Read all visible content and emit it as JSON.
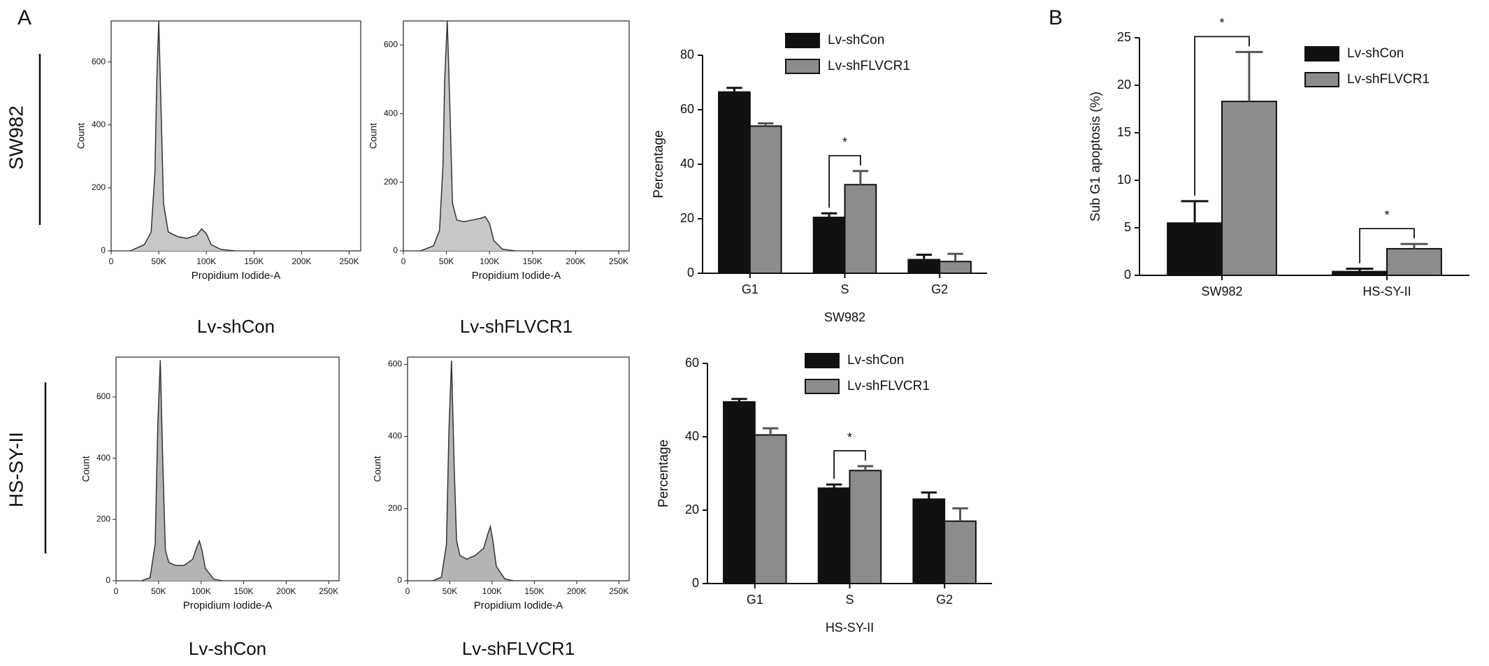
{
  "panel_labels": [
    "A",
    "B"
  ],
  "row_labels": [
    "SW982",
    "HS-SY-II"
  ],
  "chart_data": [
    {
      "type": "area",
      "caption": "Lv-shCon",
      "xlabel": "Propidium Iodide-A",
      "ylabel": "Count",
      "x": [
        20000,
        35000,
        42000,
        46000,
        48000,
        50000,
        52000,
        55000,
        60000,
        70000,
        80000,
        90000,
        95000,
        100000,
        105000,
        115000,
        130000
      ],
      "values": [
        0,
        20,
        60,
        250,
        550,
        730,
        500,
        150,
        60,
        45,
        40,
        50,
        70,
        55,
        20,
        5,
        0
      ],
      "color": "#c8c8c8",
      "xlim": [
        0,
        262144
      ],
      "xticks": [
        0,
        {
          "value": 50000,
          "label": "50K"
        },
        {
          "value": 100000,
          "label": "100K"
        },
        {
          "value": 150000,
          "label": "150K"
        },
        {
          "value": 200000,
          "label": "200K"
        },
        {
          "value": 250000,
          "label": "250K"
        }
      ],
      "ylim": [
        0,
        730
      ],
      "yticks": [
        0,
        200,
        400,
        600
      ]
    },
    {
      "type": "area",
      "caption": "Lv-shFLVCR1",
      "xlabel": "Propidium Iodide-A",
      "ylabel": "Count",
      "x": [
        20000,
        35000,
        42000,
        46000,
        48000,
        51000,
        54000,
        57000,
        62000,
        70000,
        80000,
        90000,
        95000,
        100000,
        105000,
        115000,
        130000
      ],
      "values": [
        0,
        15,
        60,
        250,
        500,
        670,
        420,
        140,
        90,
        85,
        90,
        95,
        100,
        80,
        30,
        5,
        0
      ],
      "color": "#c8c8c8",
      "xlim": [
        0,
        262144
      ],
      "xticks": [
        0,
        {
          "value": 50000,
          "label": "50K"
        },
        {
          "value": 100000,
          "label": "100K"
        },
        {
          "value": 150000,
          "label": "150K"
        },
        {
          "value": 200000,
          "label": "200K"
        },
        {
          "value": 250000,
          "label": "250K"
        }
      ],
      "ylim": [
        0,
        670
      ],
      "yticks": [
        0,
        200,
        400,
        600
      ]
    },
    {
      "type": "area",
      "caption": "Lv-shCon",
      "xlabel": "Propidium Iodide-A",
      "ylabel": "Count",
      "x": [
        30000,
        40000,
        46000,
        49000,
        52000,
        55000,
        58000,
        62000,
        70000,
        80000,
        90000,
        95000,
        98000,
        101000,
        105000,
        115000,
        125000
      ],
      "values": [
        0,
        10,
        120,
        500,
        720,
        380,
        100,
        60,
        50,
        50,
        70,
        110,
        130,
        100,
        40,
        5,
        0
      ],
      "color": "#b4b4b4",
      "xlim": [
        0,
        262144
      ],
      "xticks": [
        0,
        {
          "value": 50000,
          "label": "50K"
        },
        {
          "value": 100000,
          "label": "100K"
        },
        {
          "value": 150000,
          "label": "150K"
        },
        {
          "value": 200000,
          "label": "200K"
        },
        {
          "value": 250000,
          "label": "250K"
        }
      ],
      "ylim": [
        0,
        730
      ],
      "yticks": [
        0,
        200,
        400,
        600
      ]
    },
    {
      "type": "area",
      "caption": "Lv-shFLVCR1",
      "xlabel": "Propidium Iodide-A",
      "ylabel": "Count",
      "x": [
        30000,
        40000,
        46000,
        49000,
        52000,
        55000,
        58000,
        62000,
        70000,
        80000,
        90000,
        95000,
        98000,
        101000,
        105000,
        115000,
        125000
      ],
      "values": [
        0,
        10,
        100,
        420,
        610,
        330,
        110,
        70,
        60,
        70,
        90,
        130,
        150,
        110,
        40,
        5,
        0
      ],
      "color": "#b4b4b4",
      "xlim": [
        0,
        262144
      ],
      "xticks": [
        0,
        {
          "value": 50000,
          "label": "50K"
        },
        {
          "value": 100000,
          "label": "100K"
        },
        {
          "value": 150000,
          "label": "150K"
        },
        {
          "value": 200000,
          "label": "200K"
        },
        {
          "value": 250000,
          "label": "250K"
        }
      ],
      "ylim": [
        0,
        620
      ],
      "yticks": [
        0,
        200,
        400,
        600
      ]
    },
    {
      "type": "bar",
      "xlabel": "SW982",
      "ylabel": "Percentage",
      "categories": [
        "G1",
        "S",
        "G2"
      ],
      "series": [
        {
          "name": "Lv-shCon",
          "color": "#111111",
          "values": [
            66.5,
            20.5,
            5
          ],
          "errors": [
            1.5,
            1.5,
            1.8
          ]
        },
        {
          "name": "Lv-shFLVCR1",
          "color": "#8c8c8c",
          "values": [
            54,
            32.5,
            4.3
          ],
          "errors": [
            1,
            5,
            2.8
          ]
        }
      ],
      "significance": [
        null,
        "*",
        null
      ],
      "ylim": [
        0,
        80
      ],
      "yticks": [
        0,
        20,
        40,
        60,
        80
      ]
    },
    {
      "type": "bar",
      "xlabel": "HS-SY-II",
      "ylabel": "Percentage",
      "categories": [
        "G1",
        "S",
        "G2"
      ],
      "series": [
        {
          "name": "Lv-shCon",
          "color": "#111111",
          "values": [
            49.5,
            26,
            23
          ],
          "errors": [
            0.8,
            1,
            1.8
          ]
        },
        {
          "name": "Lv-shFLVCR1",
          "color": "#8c8c8c",
          "values": [
            40.5,
            30.8,
            17
          ],
          "errors": [
            1.8,
            1.2,
            3.5
          ]
        }
      ],
      "significance": [
        null,
        "*",
        null
      ],
      "ylim": [
        0,
        60
      ],
      "yticks": [
        0,
        20,
        40,
        60
      ]
    },
    {
      "type": "bar",
      "ylabel": "Sub G1 apoptosis (%)",
      "categories": [
        "SW982",
        "HS-SY-II"
      ],
      "series": [
        {
          "name": "Lv-shCon",
          "color": "#111111",
          "values": [
            5.5,
            0.4
          ],
          "errors": [
            2.3,
            0.3
          ]
        },
        {
          "name": "Lv-shFLVCR1",
          "color": "#8c8c8c",
          "values": [
            18.3,
            2.8
          ],
          "errors": [
            5.2,
            0.5
          ]
        }
      ],
      "significance": [
        "*",
        "*"
      ],
      "ylim": [
        0,
        25
      ],
      "yticks": [
        0,
        5,
        10,
        15,
        20,
        25
      ]
    }
  ]
}
